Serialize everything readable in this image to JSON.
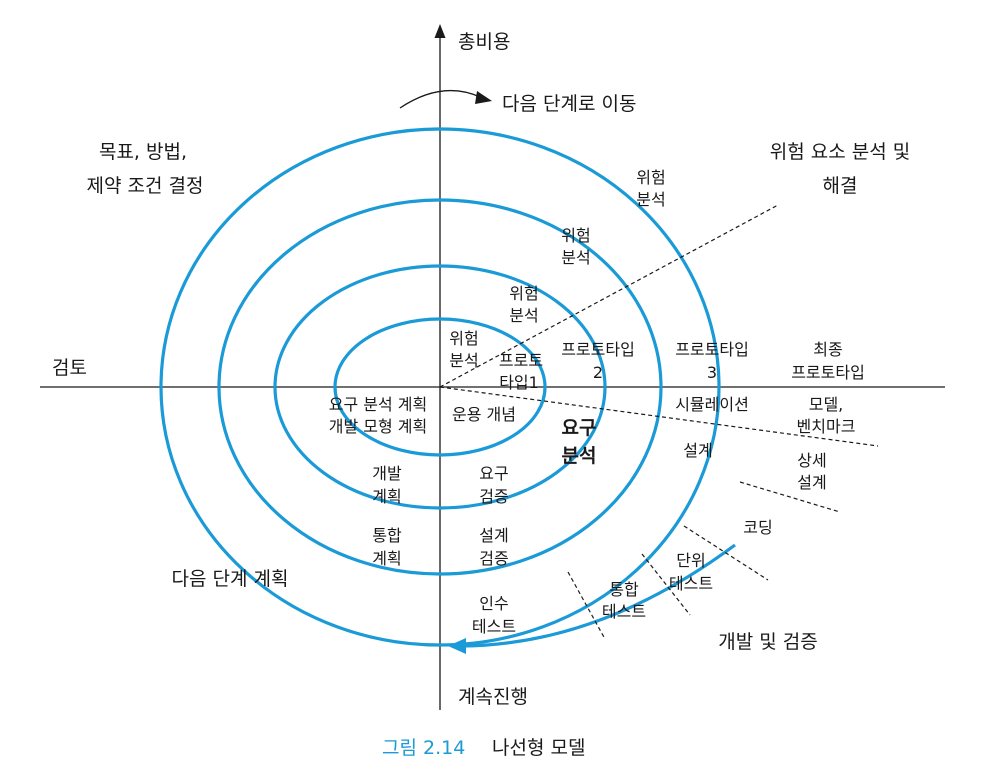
{
  "colors": {
    "spiral": "#1a9ad6",
    "axis": "#1a1a1a",
    "caption_number": "#1a9ad6"
  },
  "axes": {
    "top": "총비용",
    "bottom": "계속진행",
    "left": "검토"
  },
  "quadrants": {
    "top_left": [
      "목표, 방법,",
      "제약 조건 결정"
    ],
    "top_right": [
      "위험 요소 분석 및",
      "해결"
    ],
    "bottom_left": "다음 단계 계획",
    "bottom_right": "개발 및 검증",
    "move_next": "다음 단계로 이동"
  },
  "risk_analysis": [
    "위험",
    "분석"
  ],
  "prototypes": {
    "p1": [
      "프로토",
      "타입1"
    ],
    "p2": [
      "프로토타입",
      "2"
    ],
    "p3": [
      "프로토타입",
      "3"
    ],
    "final": [
      "최종",
      "프로토타입"
    ]
  },
  "center": {
    "plan": [
      "요구 분석 계획",
      "개발 모형 계획"
    ],
    "concept": "운용 개념",
    "requirements": [
      "요구",
      "분석"
    ]
  },
  "dev_phases": {
    "simulation": "시뮬레이션",
    "benchmark": [
      "모델,",
      "벤치마크"
    ],
    "design": "설계",
    "detail_design": [
      "상세",
      "설계"
    ],
    "coding": "코딩",
    "unit_test": [
      "단위",
      "테스트"
    ],
    "integration_test": [
      "통합",
      "테스트"
    ],
    "acceptance_test": [
      "인수",
      "테스트"
    ]
  },
  "plan_phases": {
    "dev_plan": [
      "개발",
      "계획"
    ],
    "integration_plan": [
      "통합",
      "계획"
    ],
    "req_validation": [
      "요구",
      "검증"
    ],
    "design_validation": [
      "설계",
      "검증"
    ]
  },
  "caption": {
    "number": "그림 2.14",
    "title": "나선형 모델"
  }
}
